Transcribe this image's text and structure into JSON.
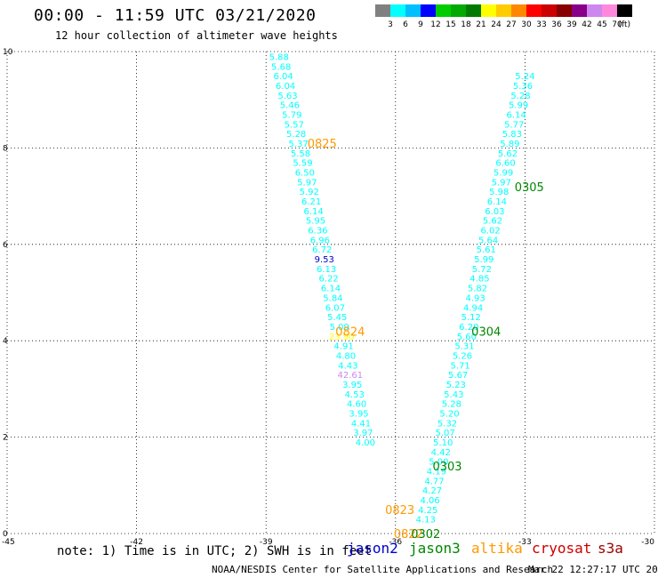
{
  "header": {
    "title": "00:00 - 11:59 UTC 03/21/2020",
    "subtitle": "12 hour collection of altimeter wave heights"
  },
  "legend": {
    "unit": "(ft)",
    "bins": [
      {
        "label": "3",
        "color": "#808080"
      },
      {
        "label": "6",
        "color": "#00ffff"
      },
      {
        "label": "9",
        "color": "#00bfff"
      },
      {
        "label": "12",
        "color": "#0000ff"
      },
      {
        "label": "15",
        "color": "#00cc00"
      },
      {
        "label": "18",
        "color": "#00aa00"
      },
      {
        "label": "21",
        "color": "#007a00"
      },
      {
        "label": "24",
        "color": "#ffff00"
      },
      {
        "label": "27",
        "color": "#ffcc00"
      },
      {
        "label": "30",
        "color": "#ff8800"
      },
      {
        "label": "33",
        "color": "#ff0000"
      },
      {
        "label": "36",
        "color": "#cc0000"
      },
      {
        "label": "39",
        "color": "#880000"
      },
      {
        "label": "42",
        "color": "#880088"
      },
      {
        "label": "45",
        "color": "#cc88ee"
      },
      {
        "label": "70",
        "color": "#ff88dd"
      },
      {
        "label": "",
        "color": "#000000"
      }
    ]
  },
  "footer": {
    "note": "note: 1) Time is in UTC; 2) SWH is in feet",
    "satellites": [
      {
        "name": "jason2",
        "color": "#0000cc"
      },
      {
        "name": "jason3",
        "color": "#008800"
      },
      {
        "name": "altika",
        "color": "#ff9900"
      },
      {
        "name": "cryosat",
        "color": "#cc0000"
      },
      {
        "name": "s3a",
        "color": "#990000"
      }
    ],
    "credit": "NOAA/NESDIS Center for Satellite Applications and Research",
    "timestamp": "Mar 22 12:27:17 UTC 2020"
  },
  "chart_data": {
    "type": "scatter",
    "xlim": [
      -45,
      -30
    ],
    "ylim": [
      0,
      10
    ],
    "xticks": [
      "-45",
      "-42",
      "-39",
      "-36",
      "-33",
      "-30"
    ],
    "yticks": [
      "0",
      "2",
      "4",
      "6",
      "8",
      "10"
    ],
    "grid": true,
    "series": [
      {
        "satellite": "altika",
        "color_default": "#00ffff",
        "points": [
          {
            "x": -38.7,
            "y": 9.9,
            "label": "5.88"
          },
          {
            "x": -38.65,
            "y": 9.7,
            "label": "5.68"
          },
          {
            "x": -38.6,
            "y": 9.5,
            "label": "6.04"
          },
          {
            "x": -38.55,
            "y": 9.3,
            "label": "6.04"
          },
          {
            "x": -38.5,
            "y": 9.1,
            "label": "5.63"
          },
          {
            "x": -38.45,
            "y": 8.9,
            "label": "5.46"
          },
          {
            "x": -38.4,
            "y": 8.7,
            "label": "5.79"
          },
          {
            "x": -38.35,
            "y": 8.5,
            "label": "5.57"
          },
          {
            "x": -38.3,
            "y": 8.3,
            "label": "5.28"
          },
          {
            "x": -38.25,
            "y": 8.1,
            "label": "5.37"
          },
          {
            "x": -38.2,
            "y": 7.9,
            "label": "5.58"
          },
          {
            "x": -38.15,
            "y": 7.7,
            "label": "5.59"
          },
          {
            "x": -38.1,
            "y": 7.5,
            "label": "6.50"
          },
          {
            "x": -38.05,
            "y": 7.3,
            "label": "5.97"
          },
          {
            "x": -38.0,
            "y": 7.1,
            "label": "5.92"
          },
          {
            "x": -37.95,
            "y": 6.9,
            "label": "6.21"
          },
          {
            "x": -37.9,
            "y": 6.7,
            "label": "6.14"
          },
          {
            "x": -37.85,
            "y": 6.5,
            "label": "5.95"
          },
          {
            "x": -37.8,
            "y": 6.3,
            "label": "6.36"
          },
          {
            "x": -37.75,
            "y": 6.1,
            "label": "6.96"
          },
          {
            "x": -37.7,
            "y": 5.9,
            "label": "6.72"
          },
          {
            "x": -37.65,
            "y": 5.7,
            "label": "9.53",
            "color": "#0000cc"
          },
          {
            "x": -37.6,
            "y": 5.5,
            "label": "6.13"
          },
          {
            "x": -37.55,
            "y": 5.3,
            "label": "6.22"
          },
          {
            "x": -37.5,
            "y": 5.1,
            "label": "6.14"
          },
          {
            "x": -37.45,
            "y": 4.9,
            "label": "5.84"
          },
          {
            "x": -37.4,
            "y": 4.7,
            "label": "6.07"
          },
          {
            "x": -37.35,
            "y": 4.5,
            "label": "5.45"
          },
          {
            "x": -37.3,
            "y": 4.3,
            "label": "5.09"
          },
          {
            "x": -37.25,
            "y": 4.1,
            "label": "23.90",
            "color": "#ffff00"
          },
          {
            "x": -37.2,
            "y": 3.9,
            "label": "4.91"
          },
          {
            "x": -37.15,
            "y": 3.7,
            "label": "4.80"
          },
          {
            "x": -37.1,
            "y": 3.5,
            "label": "4.43"
          },
          {
            "x": -37.05,
            "y": 3.3,
            "label": "42.61",
            "color": "#cc88ee"
          },
          {
            "x": -37.0,
            "y": 3.1,
            "label": "3.95"
          },
          {
            "x": -36.95,
            "y": 2.9,
            "label": "4.53"
          },
          {
            "x": -36.9,
            "y": 2.7,
            "label": "4.60"
          },
          {
            "x": -36.85,
            "y": 2.5,
            "label": "3.95"
          },
          {
            "x": -36.8,
            "y": 2.3,
            "label": "4.41"
          },
          {
            "x": -36.75,
            "y": 2.1,
            "label": "3.97"
          },
          {
            "x": -36.7,
            "y": 1.9,
            "label": "4.00"
          }
        ],
        "time_labels": [
          {
            "x": -37.7,
            "y": 8.1,
            "label": "0825"
          },
          {
            "x": -37.05,
            "y": 4.2,
            "label": "0824"
          },
          {
            "x": -35.9,
            "y": 0.5,
            "label": "0823"
          },
          {
            "x": -35.7,
            "y": 0.0,
            "label": "0822"
          }
        ]
      },
      {
        "satellite": "jason3",
        "color_default": "#00ffff",
        "points": [
          {
            "x": -35.3,
            "y": 0.3,
            "label": "4.13"
          },
          {
            "x": -35.25,
            "y": 0.5,
            "label": "4.25"
          },
          {
            "x": -35.2,
            "y": 0.7,
            "label": "4.06"
          },
          {
            "x": -35.15,
            "y": 0.9,
            "label": "4.27"
          },
          {
            "x": -35.1,
            "y": 1.1,
            "label": "4.77"
          },
          {
            "x": -35.05,
            "y": 1.3,
            "label": "4.19"
          },
          {
            "x": -35.0,
            "y": 1.5,
            "label": "5.00"
          },
          {
            "x": -34.95,
            "y": 1.7,
            "label": "4.42"
          },
          {
            "x": -34.9,
            "y": 1.9,
            "label": "5.10"
          },
          {
            "x": -34.85,
            "y": 2.1,
            "label": "5.07"
          },
          {
            "x": -34.8,
            "y": 2.3,
            "label": "5.32"
          },
          {
            "x": -34.75,
            "y": 2.5,
            "label": "5.20"
          },
          {
            "x": -34.7,
            "y": 2.7,
            "label": "5.28"
          },
          {
            "x": -34.65,
            "y": 2.9,
            "label": "5.43"
          },
          {
            "x": -34.6,
            "y": 3.1,
            "label": "5.23"
          },
          {
            "x": -34.55,
            "y": 3.3,
            "label": "5.67"
          },
          {
            "x": -34.5,
            "y": 3.5,
            "label": "5.71"
          },
          {
            "x": -34.45,
            "y": 3.7,
            "label": "5.26"
          },
          {
            "x": -34.4,
            "y": 3.9,
            "label": "5.31"
          },
          {
            "x": -34.35,
            "y": 4.1,
            "label": "5.60"
          },
          {
            "x": -34.3,
            "y": 4.3,
            "label": "6.20"
          },
          {
            "x": -34.25,
            "y": 4.5,
            "label": "5.12"
          },
          {
            "x": -34.2,
            "y": 4.7,
            "label": "4.94"
          },
          {
            "x": -34.15,
            "y": 4.9,
            "label": "4.93"
          },
          {
            "x": -34.1,
            "y": 5.1,
            "label": "5.82"
          },
          {
            "x": -34.05,
            "y": 5.3,
            "label": "4.85"
          },
          {
            "x": -34.0,
            "y": 5.5,
            "label": "5.72"
          },
          {
            "x": -33.95,
            "y": 5.7,
            "label": "5.99"
          },
          {
            "x": -33.9,
            "y": 5.9,
            "label": "5.61"
          },
          {
            "x": -33.85,
            "y": 6.1,
            "label": "5.64"
          },
          {
            "x": -33.8,
            "y": 6.3,
            "label": "6.02"
          },
          {
            "x": -33.75,
            "y": 6.5,
            "label": "5.62"
          },
          {
            "x": -33.7,
            "y": 6.7,
            "label": "6.03"
          },
          {
            "x": -33.65,
            "y": 6.9,
            "label": "6.14"
          },
          {
            "x": -33.6,
            "y": 7.1,
            "label": "5.98"
          },
          {
            "x": -33.55,
            "y": 7.3,
            "label": "5.97"
          },
          {
            "x": -33.5,
            "y": 7.5,
            "label": "5.99"
          },
          {
            "x": -33.45,
            "y": 7.7,
            "label": "6.60"
          },
          {
            "x": -33.4,
            "y": 7.9,
            "label": "5.62"
          },
          {
            "x": -33.35,
            "y": 8.1,
            "label": "5.89"
          },
          {
            "x": -33.3,
            "y": 8.3,
            "label": "5.83"
          },
          {
            "x": -33.25,
            "y": 8.5,
            "label": "5.77"
          },
          {
            "x": -33.2,
            "y": 8.7,
            "label": "6.14"
          },
          {
            "x": -33.15,
            "y": 8.9,
            "label": "5.99"
          },
          {
            "x": -33.1,
            "y": 9.1,
            "label": "5.28"
          },
          {
            "x": -33.05,
            "y": 9.3,
            "label": "5.36"
          },
          {
            "x": -33.0,
            "y": 9.5,
            "label": "5.24"
          }
        ],
        "time_labels": [
          {
            "x": -35.3,
            "y": 0.0,
            "label": "0302"
          },
          {
            "x": -34.8,
            "y": 1.4,
            "label": "0303"
          },
          {
            "x": -33.9,
            "y": 4.2,
            "label": "0304"
          },
          {
            "x": -32.9,
            "y": 7.2,
            "label": "0305"
          }
        ]
      }
    ]
  }
}
